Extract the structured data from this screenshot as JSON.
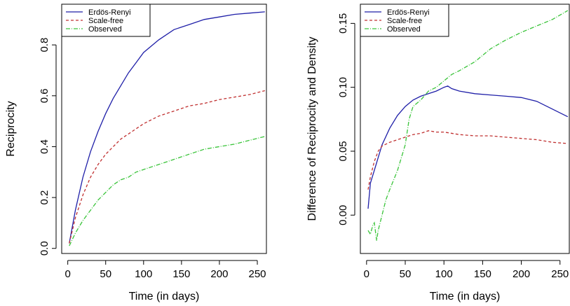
{
  "chart_data": [
    {
      "type": "line",
      "xlabel": "Time (in days)",
      "ylabel": "Reciprocity",
      "xlim": [
        -8,
        262
      ],
      "ylim": [
        -0.02,
        0.96
      ],
      "xticks": [
        0,
        50,
        100,
        150,
        200,
        250
      ],
      "yticks": [
        0.0,
        0.2,
        0.4,
        0.6,
        0.8
      ],
      "ytick_labels": [
        "0.0",
        "0.2",
        "0.4",
        "0.6",
        "0.8"
      ],
      "legend_position": "top-left",
      "series": [
        {
          "name": "Erdös-Renyi",
          "color": "#1f1fa8",
          "dash": "solid",
          "x": [
            2,
            10,
            20,
            30,
            40,
            50,
            60,
            70,
            80,
            90,
            100,
            120,
            140,
            160,
            180,
            200,
            220,
            240,
            260
          ],
          "y": [
            0.02,
            0.15,
            0.28,
            0.38,
            0.46,
            0.53,
            0.59,
            0.64,
            0.69,
            0.73,
            0.77,
            0.82,
            0.86,
            0.88,
            0.9,
            0.91,
            0.92,
            0.925,
            0.93
          ]
        },
        {
          "name": "Scale-free",
          "color": "#c03030",
          "dash": "4,3",
          "x": [
            2,
            10,
            20,
            30,
            40,
            50,
            60,
            70,
            80,
            90,
            100,
            120,
            140,
            160,
            180,
            200,
            220,
            240,
            260
          ],
          "y": [
            0.02,
            0.12,
            0.21,
            0.28,
            0.33,
            0.37,
            0.4,
            0.43,
            0.45,
            0.47,
            0.49,
            0.52,
            0.54,
            0.56,
            0.57,
            0.585,
            0.595,
            0.605,
            0.62
          ]
        },
        {
          "name": "Observed",
          "color": "#3ac43a",
          "dash": "6,2,1,2",
          "x": [
            2,
            10,
            20,
            30,
            40,
            50,
            60,
            70,
            80,
            90,
            100,
            120,
            140,
            160,
            180,
            200,
            220,
            240,
            260
          ],
          "y": [
            0.01,
            0.06,
            0.11,
            0.15,
            0.19,
            0.22,
            0.25,
            0.27,
            0.28,
            0.3,
            0.31,
            0.33,
            0.35,
            0.37,
            0.39,
            0.4,
            0.41,
            0.425,
            0.44
          ]
        }
      ]
    },
    {
      "type": "line",
      "xlabel": "Time (in days)",
      "ylabel": "Difference of Reciprocity and Density",
      "xlim": [
        -8,
        262
      ],
      "ylim": [
        -0.03,
        0.165
      ],
      "xticks": [
        0,
        50,
        100,
        150,
        200,
        250
      ],
      "yticks": [
        0.0,
        0.05,
        0.1,
        0.15
      ],
      "ytick_labels": [
        "0.00",
        "0.05",
        "0.10",
        "0.15"
      ],
      "legend_position": "top-left",
      "series": [
        {
          "name": "Erdös-Renyi",
          "color": "#1f1fa8",
          "dash": "solid",
          "x": [
            2,
            5,
            10,
            15,
            20,
            30,
            40,
            50,
            60,
            70,
            80,
            90,
            100,
            105,
            110,
            120,
            140,
            160,
            180,
            200,
            220,
            240,
            260
          ],
          "y": [
            0.005,
            0.025,
            0.035,
            0.045,
            0.055,
            0.068,
            0.078,
            0.085,
            0.09,
            0.093,
            0.095,
            0.097,
            0.1,
            0.101,
            0.099,
            0.097,
            0.095,
            0.094,
            0.093,
            0.092,
            0.089,
            0.083,
            0.077
          ]
        },
        {
          "name": "Scale-free",
          "color": "#c03030",
          "dash": "4,3",
          "x": [
            2,
            5,
            10,
            15,
            20,
            30,
            40,
            50,
            60,
            70,
            80,
            90,
            100,
            120,
            140,
            160,
            180,
            200,
            220,
            240,
            260
          ],
          "y": [
            0.02,
            0.03,
            0.042,
            0.05,
            0.054,
            0.057,
            0.059,
            0.061,
            0.063,
            0.064,
            0.066,
            0.065,
            0.065,
            0.063,
            0.062,
            0.062,
            0.061,
            0.06,
            0.059,
            0.057,
            0.056
          ]
        },
        {
          "name": "Observed",
          "color": "#3ac43a",
          "dash": "6,2,1,2",
          "x": [
            2,
            5,
            8,
            10,
            13,
            15,
            20,
            25,
            30,
            40,
            50,
            55,
            60,
            70,
            80,
            90,
            100,
            110,
            120,
            140,
            160,
            180,
            200,
            220,
            240,
            260
          ],
          "y": [
            -0.012,
            -0.015,
            -0.008,
            -0.006,
            -0.02,
            -0.012,
            0.0,
            0.012,
            0.02,
            0.035,
            0.055,
            0.075,
            0.085,
            0.09,
            0.097,
            0.1,
            0.105,
            0.11,
            0.113,
            0.12,
            0.13,
            0.137,
            0.143,
            0.148,
            0.153,
            0.16
          ]
        }
      ]
    }
  ]
}
